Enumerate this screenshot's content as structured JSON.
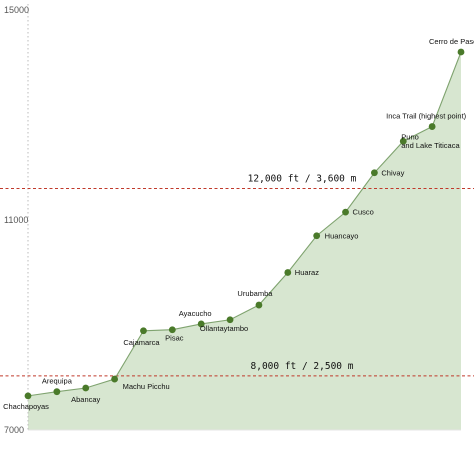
{
  "chart_data": {
    "type": "area",
    "title": "",
    "xlabel": "",
    "ylabel": "",
    "ylim": [
      7000,
      15000
    ],
    "yticks": [
      7000,
      11000,
      15000
    ],
    "grid": false,
    "legend": "none",
    "points": [
      {
        "label": [
          "Chachapoyas"
        ],
        "value": 7650
      },
      {
        "label": [
          "Arequipa"
        ],
        "value": 7730
      },
      {
        "label": [
          "Abancay"
        ],
        "value": 7800
      },
      {
        "label": [
          "Machu Picchu"
        ],
        "value": 7970
      },
      {
        "label": [
          "Cajamarca"
        ],
        "value": 8890
      },
      {
        "label": [
          "Pisac"
        ],
        "value": 8910
      },
      {
        "label": [
          "Ayacucho"
        ],
        "value": 9020
      },
      {
        "label": [
          "Ollantaytambo"
        ],
        "value": 9100
      },
      {
        "label": [
          "Urubamba"
        ],
        "value": 9380
      },
      {
        "label": [
          "Huaraz"
        ],
        "value": 10000
      },
      {
        "label": [
          "Huancayo"
        ],
        "value": 10700
      },
      {
        "label": [
          "Cusco"
        ],
        "value": 11150
      },
      {
        "label": [
          "Chivay"
        ],
        "value": 11900
      },
      {
        "label": [
          "Puno",
          "and Lake Titicaca"
        ],
        "value": 12500
      },
      {
        "label": [
          "Inca Trail (highest point)"
        ],
        "value": 12780
      },
      {
        "label": [
          "Cerro de Pasco"
        ],
        "value": 14200
      }
    ],
    "reference_lines": [
      {
        "value": 11600,
        "label": "12,000 ft / 3,600 m",
        "color": "#c0392b"
      },
      {
        "value": 8030,
        "label": "8,000 ft / 2,500 m",
        "color": "#c0392b"
      }
    ],
    "colors": {
      "area_fill": "#d7e6d0",
      "line": "#7fa36f",
      "marker": "#4a7a2a",
      "axis": "#bbbbbb"
    }
  }
}
